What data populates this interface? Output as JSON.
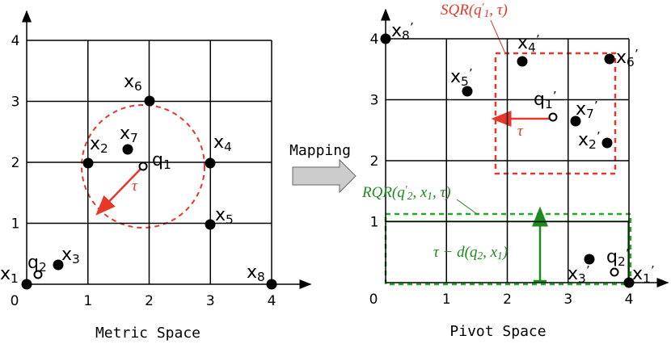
{
  "mapping": "Mapping",
  "left": {
    "caption": "Metric Space",
    "x_ticks": [
      "0",
      "1",
      "2",
      "3",
      "4"
    ],
    "y_ticks": [
      "1",
      "2",
      "3",
      "4"
    ],
    "tau": "τ",
    "points": [
      {
        "parts": [
          {
            "text": "x"
          },
          {
            "text": "1",
            "pos": "sub"
          }
        ]
      },
      {
        "parts": [
          {
            "text": "x"
          },
          {
            "text": "2",
            "pos": "sub"
          }
        ]
      },
      {
        "parts": [
          {
            "text": "x"
          },
          {
            "text": "3",
            "pos": "sub"
          }
        ]
      },
      {
        "parts": [
          {
            "text": "x"
          },
          {
            "text": "4",
            "pos": "sub"
          }
        ]
      },
      {
        "parts": [
          {
            "text": "x"
          },
          {
            "text": "5",
            "pos": "sub"
          }
        ]
      },
      {
        "parts": [
          {
            "text": "x"
          },
          {
            "text": "6",
            "pos": "sub"
          }
        ]
      },
      {
        "parts": [
          {
            "text": "x"
          },
          {
            "text": "7",
            "pos": "sub"
          }
        ]
      },
      {
        "parts": [
          {
            "text": "x"
          },
          {
            "text": "8",
            "pos": "sub"
          }
        ]
      },
      {
        "parts": [
          {
            "text": "q"
          },
          {
            "text": "1",
            "pos": "sub"
          }
        ]
      },
      {
        "parts": [
          {
            "text": "q"
          },
          {
            "text": "2",
            "pos": "sub"
          }
        ]
      }
    ]
  },
  "right": {
    "caption": "Pivot Space",
    "x_ticks": [
      "0",
      "1",
      "2",
      "3",
      "4"
    ],
    "y_ticks": [
      "1",
      "2",
      "3",
      "4"
    ],
    "tau": "τ",
    "points": [
      {
        "parts": [
          {
            "text": "x"
          },
          {
            "text": "1",
            "pos": "sub"
          },
          {
            "text": "’",
            "pos": "sup"
          }
        ]
      },
      {
        "parts": [
          {
            "text": "x"
          },
          {
            "text": "2",
            "pos": "sub"
          },
          {
            "text": "’",
            "pos": "sup"
          }
        ]
      },
      {
        "parts": [
          {
            "text": "x"
          },
          {
            "text": "3",
            "pos": "sub"
          },
          {
            "text": "’",
            "pos": "sup"
          }
        ]
      },
      {
        "parts": [
          {
            "text": "x"
          },
          {
            "text": "4",
            "pos": "sub"
          },
          {
            "text": "’",
            "pos": "sup"
          }
        ]
      },
      {
        "parts": [
          {
            "text": "x"
          },
          {
            "text": "5",
            "pos": "sub"
          },
          {
            "text": "’",
            "pos": "sup"
          }
        ]
      },
      {
        "parts": [
          {
            "text": "x"
          },
          {
            "text": "6",
            "pos": "sub"
          },
          {
            "text": "’",
            "pos": "sup"
          }
        ]
      },
      {
        "parts": [
          {
            "text": "x"
          },
          {
            "text": "7",
            "pos": "sub"
          },
          {
            "text": "’",
            "pos": "sup"
          }
        ]
      },
      {
        "parts": [
          {
            "text": "x"
          },
          {
            "text": "8",
            "pos": "sub"
          },
          {
            "text": "’",
            "pos": "sup"
          }
        ]
      },
      {
        "parts": [
          {
            "text": "q"
          },
          {
            "text": "1",
            "pos": "sub"
          },
          {
            "text": "’",
            "pos": "sup"
          }
        ]
      },
      {
        "parts": [
          {
            "text": "q"
          },
          {
            "text": "2",
            "pos": "sub"
          },
          {
            "text": "’",
            "pos": "sup"
          }
        ]
      }
    ],
    "sqr_label": {
      "parts": [
        {
          "text": "SQR(q"
        },
        {
          "text": "′",
          "pos": "sup"
        },
        {
          "text": "1",
          "pos": "sub"
        },
        {
          "text": ", τ)"
        }
      ]
    },
    "rqr_label": {
      "parts": [
        {
          "text": "RQR(q"
        },
        {
          "text": "′",
          "pos": "sup"
        },
        {
          "text": "2",
          "pos": "sub"
        },
        {
          "text": ", x"
        },
        {
          "text": "1",
          "pos": "sub"
        },
        {
          "text": ", τ)"
        }
      ]
    },
    "dist_label": {
      "parts": [
        {
          "text": "τ − d(q"
        },
        {
          "text": "2",
          "pos": "sub"
        },
        {
          "text": ", x"
        },
        {
          "text": "1",
          "pos": "sub"
        },
        {
          "text": ")"
        }
      ]
    }
  }
}
